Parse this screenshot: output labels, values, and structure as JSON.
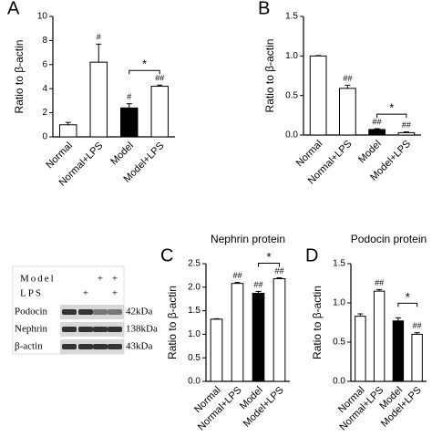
{
  "chart_data": [
    {
      "type": "bar",
      "panel": "A",
      "title": null,
      "ylabel": "Ratio to β-actin",
      "categories": [
        "Normal",
        "Normal+LPS",
        "Model",
        "Model+LPS"
      ],
      "values": [
        1.0,
        6.2,
        2.4,
        4.2
      ],
      "errors": [
        0.2,
        1.5,
        0.35,
        0.1
      ],
      "colors": [
        "#ffffff",
        "#ffffff",
        "#000000",
        "#ffffff"
      ],
      "bar_labels": [
        null,
        "#",
        "#",
        "##"
      ],
      "significance": "*",
      "ylim": [
        0,
        10
      ],
      "yticks": [
        0,
        2,
        4,
        6,
        8,
        10
      ]
    },
    {
      "type": "bar",
      "panel": "B",
      "title": null,
      "ylabel": "Ratio to β-actin",
      "categories": [
        "Normal",
        "Normal+LPS",
        "Model",
        "Model+LPS"
      ],
      "values": [
        1.0,
        0.59,
        0.07,
        0.03
      ],
      "errors": [
        0.005,
        0.04,
        0.01,
        0.01
      ],
      "colors": [
        "#ffffff",
        "#ffffff",
        "#000000",
        "#ffffff"
      ],
      "bar_labels": [
        null,
        "##",
        "##",
        "##"
      ],
      "significance": "*",
      "ylim": [
        0,
        1.5
      ],
      "yticks": [
        {
          "value": 0,
          "label": "0.0"
        },
        0.5,
        {
          "value": 1,
          "label": "1.0"
        },
        1.5
      ]
    },
    {
      "type": "bar",
      "panel": "C",
      "title": "Nephrin protein",
      "ylabel": "Ratio to β-actin",
      "categories": [
        "Normal",
        "Normal+LPS",
        "Model",
        "Model+LPS"
      ],
      "values": [
        1.32,
        2.08,
        1.87,
        2.18
      ],
      "errors": [
        0.01,
        0.02,
        0.04,
        0.02
      ],
      "colors": [
        "#ffffff",
        "#ffffff",
        "#000000",
        "#ffffff"
      ],
      "bar_labels": [
        null,
        "##",
        "##",
        "##"
      ],
      "significance": "*",
      "ylim": [
        0,
        2.5
      ],
      "yticks": [
        {
          "value": 0,
          "label": "0.0"
        },
        0.5,
        {
          "value": 1,
          "label": "1.0"
        },
        1.5,
        {
          "value": 2,
          "label": "2.0"
        },
        2.5
      ]
    },
    {
      "type": "bar",
      "panel": "D",
      "title": "Podocin protein",
      "ylabel": "Ratio to β-actin",
      "categories": [
        "Normal",
        "Normal+LPS",
        "Model",
        "Model+LPS"
      ],
      "values": [
        0.83,
        1.15,
        0.77,
        0.6
      ],
      "errors": [
        0.03,
        0.02,
        0.04,
        0.02
      ],
      "colors": [
        "#ffffff",
        "#ffffff",
        "#000000",
        "#ffffff"
      ],
      "bar_labels": [
        null,
        "##",
        null,
        "##"
      ],
      "significance": "*",
      "ylim": [
        0,
        1.5
      ],
      "yticks": [
        {
          "value": 0,
          "label": "0.0"
        },
        0.5,
        {
          "value": 1,
          "label": "1.0"
        },
        1.5
      ]
    }
  ],
  "blot": {
    "treatments": [
      {
        "label": "Model",
        "signs": [
          null,
          null,
          "+",
          "+"
        ]
      },
      {
        "label": "LPS",
        "signs": [
          null,
          "+",
          null,
          "+"
        ]
      }
    ],
    "bands": [
      {
        "label": "Podocin",
        "size": "42kDa"
      },
      {
        "label": "Nephrin",
        "size": "138kDa"
      },
      {
        "label": "β-actin",
        "size": "43kDa"
      }
    ]
  }
}
